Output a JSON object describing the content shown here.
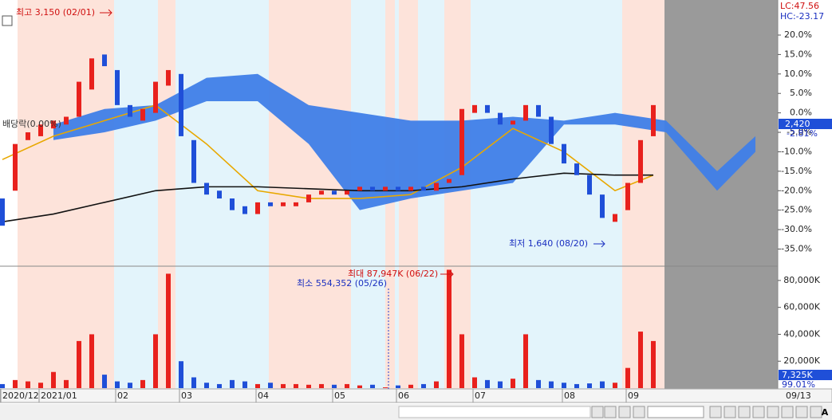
{
  "chart_data": {
    "type": "candlestick",
    "categories": [
      "2020/12",
      null,
      null,
      "2021/01",
      null,
      null,
      null,
      null,
      null,
      "02",
      null,
      null,
      null,
      null,
      "03",
      null,
      null,
      null,
      null,
      null,
      "04",
      null,
      null,
      null,
      null,
      null,
      "05",
      null,
      null,
      null,
      null,
      "06",
      null,
      null,
      null,
      null,
      null,
      "07",
      null,
      null,
      null,
      null,
      null,
      null,
      "08",
      null,
      null,
      null,
      null,
      "09",
      null,
      null
    ],
    "x_end_label": "09/13",
    "open": [
      -22,
      -20,
      -7,
      -6,
      -4,
      -3,
      -1,
      6,
      15,
      11,
      2,
      -2,
      0,
      7,
      10,
      -7,
      -18,
      -20,
      -22,
      -24,
      -26,
      -23,
      -24,
      -24,
      -23,
      -21,
      -20,
      -21,
      -20,
      -19,
      -20,
      -19,
      -20,
      -19,
      -20,
      -18,
      -16,
      0,
      2,
      0,
      -3,
      -2,
      2,
      -1,
      -8,
      -13,
      -16,
      -21,
      -28,
      -25,
      -18,
      -6
    ],
    "close": [
      -29,
      -8,
      -5,
      -3,
      -2,
      -1,
      8,
      14,
      12,
      2,
      -1,
      1,
      8,
      11,
      -6,
      -18,
      -21,
      -22,
      -25,
      -26,
      -23,
      -24,
      -23,
      -23,
      -21,
      -20,
      -21,
      -20,
      -19,
      -20,
      -19,
      -20,
      -19,
      -20,
      -18,
      -17,
      1,
      2,
      0,
      -3,
      -2,
      2,
      -1,
      -8,
      -13,
      -16,
      -21,
      -27,
      -26,
      -18,
      -7,
      2
    ],
    "up_color": "#e8211d",
    "down_color": "#1f4fd8",
    "ylim": [
      -39.2,
      28.6
    ],
    "yticks": [
      {
        "value": 20,
        "label": "20.0%"
      },
      {
        "value": 15,
        "label": "15.0%"
      },
      {
        "value": 10,
        "label": "10.0%"
      },
      {
        "value": 5,
        "label": "5.0%"
      },
      {
        "value": 0,
        "label": "0.0%"
      },
      {
        "value": -5,
        "label": "-5.0%"
      },
      {
        "value": -10,
        "label": "-10.0%"
      },
      {
        "value": -15,
        "label": "-15.0%"
      },
      {
        "value": -20,
        "label": "-20.0%"
      },
      {
        "value": -25,
        "label": "-25.0%"
      },
      {
        "value": -30,
        "label": "-30.0%"
      },
      {
        "value": -35,
        "label": "-35.0%"
      }
    ],
    "lines": [
      {
        "color": "#e8a800",
        "x": [
          0,
          4,
          8,
          12,
          16,
          20,
          24,
          28,
          32,
          36,
          40,
          44,
          48,
          51
        ],
        "values": [
          -12,
          -6,
          -2,
          2,
          -8,
          -20,
          -22,
          -22,
          -21,
          -14,
          -4,
          -10,
          -20,
          -16
        ]
      },
      {
        "color": "#111111",
        "x": [
          0,
          4,
          8,
          12,
          16,
          20,
          24,
          28,
          32,
          36,
          40,
          44,
          48,
          51
        ],
        "values": [
          -28,
          -26,
          -23,
          -20,
          -19,
          -19,
          -19.5,
          -20,
          -20,
          -19,
          -17,
          -15.5,
          -16,
          -16
        ]
      }
    ],
    "cloud": {
      "color": "#3f7ee8",
      "x": [
        4,
        8,
        12,
        16,
        20,
        24,
        28,
        32,
        36,
        40,
        44,
        48,
        52,
        56,
        59
      ],
      "upper": [
        -3,
        1,
        2,
        9,
        10,
        2,
        0,
        -2,
        -2,
        -1,
        -2,
        0,
        -2,
        -15,
        -6
      ],
      "lower": [
        -7,
        -5,
        -2,
        3,
        3,
        -8,
        -25,
        -22,
        -20,
        -18,
        -3,
        -3,
        -5,
        -20,
        -10
      ]
    },
    "volume": {
      "values": [
        3000,
        6000,
        5000,
        4000,
        12000,
        6000,
        35000,
        40000,
        10000,
        5000,
        4000,
        6000,
        40000,
        85000,
        20000,
        8000,
        4000,
        3000,
        6000,
        5000,
        3000,
        4000,
        3000,
        3000,
        2500,
        3000,
        2500,
        3000,
        2000,
        2500,
        554.352,
        2000,
        2500,
        3000,
        5000,
        87947,
        40000,
        8000,
        6000,
        5000,
        7000,
        40000,
        6000,
        5000,
        4000,
        3000,
        3500,
        5000,
        4000,
        15000,
        42000,
        35000
      ],
      "ylim": [
        0,
        90000
      ],
      "yticks": [
        {
          "value": 20000,
          "label": "20,000K"
        },
        {
          "value": 40000,
          "label": "40,000K"
        },
        {
          "value": 60000,
          "label": "60,000K"
        },
        {
          "value": 80000,
          "label": "80,000K"
        }
      ]
    },
    "annotations": {
      "high": "최고 3,150 (02/01)",
      "low": "최저 1,640 (08/20)",
      "ex_div": "배당락(0.00%)",
      "vmax": "최대 87,947K (06/22)",
      "vmin": "최소 554,352 (05/26)",
      "lc": "LC:47.56",
      "hc": "HC:-23.17",
      "price": "2,420",
      "change": "-2.81%",
      "vol_now": "7,325K",
      "vol_pct": "99.01%"
    },
    "toolbar": {
      "font_button": "A"
    }
  }
}
